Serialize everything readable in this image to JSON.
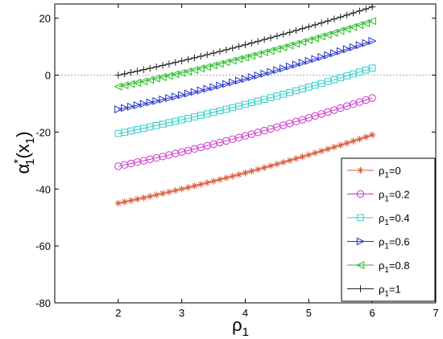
{
  "chart_data": {
    "type": "line",
    "xlabel": "ρ",
    "xlabel_sub": "1",
    "ylabel_parts": [
      "α",
      "*",
      "1",
      "(x",
      "1",
      ")"
    ],
    "xlim": [
      1,
      7
    ],
    "ylim": [
      -80,
      25
    ],
    "xticks": [
      2,
      3,
      4,
      5,
      6,
      7
    ],
    "yticks": [
      20,
      0,
      -20,
      -40,
      -60,
      -80
    ],
    "zero_line": true,
    "legend_position": "lower-right",
    "x_start": 2,
    "x_step": 0.1,
    "n_points": 41,
    "series": [
      {
        "label_main": "ρ",
        "label_sub": "1",
        "label_rest": "=0",
        "marker": "asterisk",
        "color": "#d65a3a",
        "y_start": -45,
        "y_end": -21
      },
      {
        "label_main": "ρ",
        "label_sub": "1",
        "label_rest": "=0.2",
        "marker": "circle",
        "color": "#cc33cc",
        "y_start": -32,
        "y_end": -8
      },
      {
        "label_main": "ρ",
        "label_sub": "1",
        "label_rest": "=0.4",
        "marker": "square",
        "color": "#33cccc",
        "y_start": -20.5,
        "y_end": 2.5
      },
      {
        "label_main": "ρ",
        "label_sub": "1",
        "label_rest": "=0.6",
        "marker": "triangle-right",
        "color": "#2233cc",
        "y_start": -12,
        "y_end": 12
      },
      {
        "label_main": "ρ",
        "label_sub": "1",
        "label_rest": "=0.8",
        "marker": "triangle-left",
        "color": "#22bb22",
        "y_start": -4,
        "y_end": 19
      },
      {
        "label_main": "ρ",
        "label_sub": "1",
        "label_rest": "=1",
        "marker": "plus",
        "color": "#222222",
        "y_start": 0,
        "y_end": 24
      }
    ]
  }
}
